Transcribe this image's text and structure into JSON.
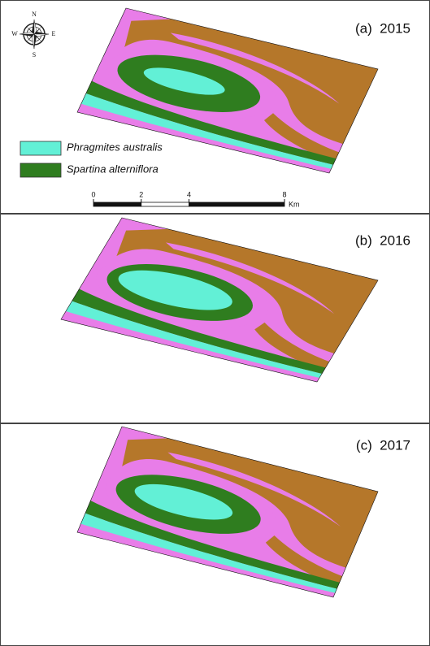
{
  "compass": {
    "n": "N",
    "s": "S",
    "e": "E",
    "w": "W"
  },
  "panels": [
    {
      "label": "(a)  2015"
    },
    {
      "label": "(b)  2016"
    },
    {
      "label": "(c)  2017"
    }
  ],
  "legend": [
    {
      "label": "Phragmites australis",
      "color": "#62f0d6"
    },
    {
      "label": "Spartina alterniflora",
      "color": "#2f7d1f"
    }
  ],
  "scale_bar": {
    "ticks": [
      0,
      2,
      4,
      8
    ],
    "unit": "Km"
  }
}
